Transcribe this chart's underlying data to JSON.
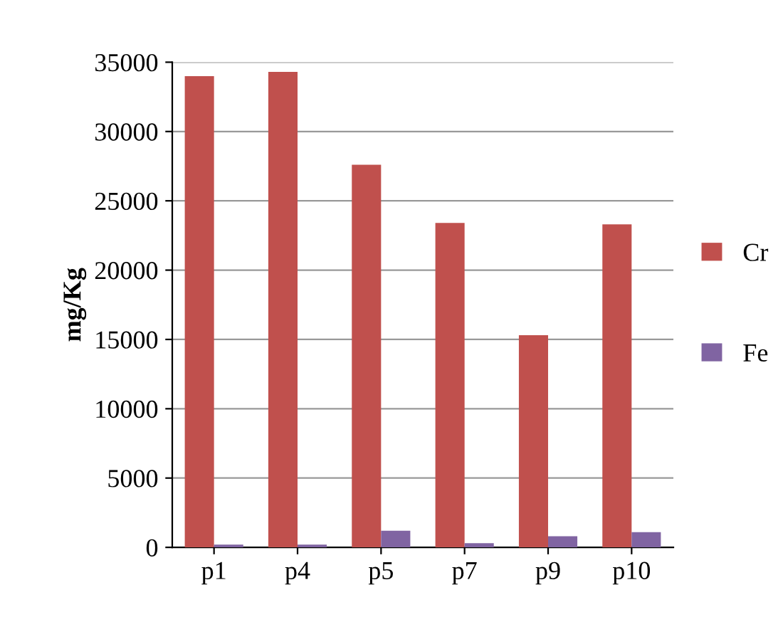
{
  "chart_data": {
    "type": "bar",
    "ylabel": "mg/Kg",
    "categories": [
      "p1",
      "p4",
      "p5",
      "p7",
      "p9",
      "p10"
    ],
    "series": [
      {
        "name": "Cr",
        "color": "#c0504d",
        "values": [
          34000,
          34300,
          27600,
          23400,
          15300,
          23300
        ]
      },
      {
        "name": "Fe",
        "color": "#8064a2",
        "values": [
          200,
          200,
          1200,
          300,
          800,
          1100
        ]
      }
    ],
    "ylim": [
      0,
      35000
    ],
    "yticks": [
      0,
      5000,
      10000,
      15000,
      20000,
      25000,
      30000,
      35000
    ],
    "grid": "y",
    "legend": "right"
  }
}
